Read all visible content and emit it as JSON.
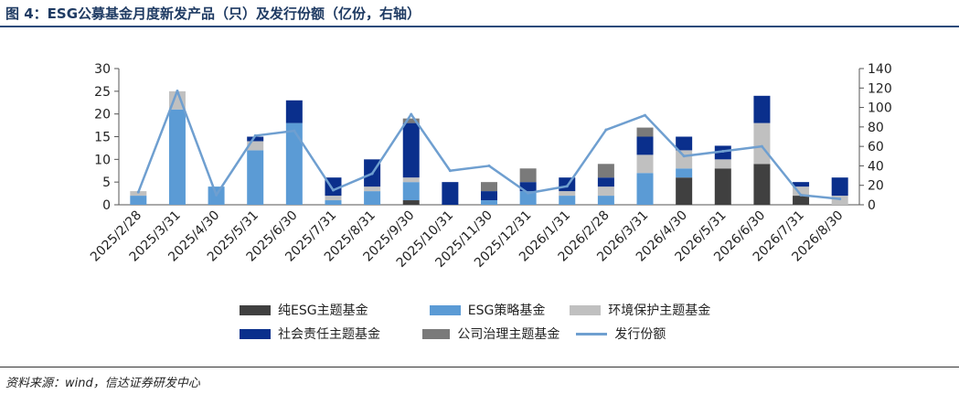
{
  "title": "图 4：ESG公募基金月度新发产品（只）及发行份额（亿份，右轴）",
  "source": "资料来源：wind，信达证券研发中心",
  "chart_data": {
    "type": "bar",
    "stacked": true,
    "categories": [
      "2025/2/28",
      "2025/3/31",
      "2025/4/30",
      "2025/5/31",
      "2025/6/30",
      "2025/7/31",
      "2025/8/31",
      "2025/9/30",
      "2025/10/31",
      "2025/11/30",
      "2025/12/31",
      "2026/1/31",
      "2026/2/28",
      "2026/3/31",
      "2026/4/30",
      "2026/5/31",
      "2026/6/30",
      "2026/7/31",
      "2026/8/30"
    ],
    "series": [
      {
        "name": "纯ESG主题基金",
        "color": "#404040",
        "values": [
          0,
          0,
          0,
          0,
          0,
          0,
          0,
          1,
          0,
          0,
          0,
          0,
          0,
          0,
          6,
          8,
          9,
          2,
          0
        ]
      },
      {
        "name": "ESG策略基金",
        "color": "#5b9bd5",
        "values": [
          2,
          21,
          4,
          12,
          18,
          1,
          3,
          4,
          0,
          1,
          3,
          2,
          2,
          7,
          2,
          0,
          0,
          0,
          0
        ]
      },
      {
        "name": "环境保护主题基金",
        "color": "#c0c0c0",
        "values": [
          1,
          4,
          0,
          2,
          0,
          1,
          1,
          1,
          0,
          0,
          0,
          1,
          2,
          4,
          4,
          2,
          9,
          2,
          2
        ]
      },
      {
        "name": "社会责任主题基金",
        "color": "#0a2f8c",
        "values": [
          0,
          0,
          0,
          1,
          5,
          4,
          6,
          12,
          5,
          2,
          2,
          3,
          2,
          4,
          3,
          3,
          6,
          1,
          4
        ]
      },
      {
        "name": "公司治理主题基金",
        "color": "#7a7a7a",
        "values": [
          0,
          0,
          0,
          0,
          0,
          0,
          0,
          1,
          0,
          2,
          3,
          0,
          3,
          2,
          0,
          0,
          0,
          0,
          0
        ]
      }
    ],
    "line": {
      "name": "发行份额",
      "color": "#6f9fd0",
      "axis": "right",
      "values": [
        13,
        117,
        10,
        71,
        76,
        15,
        32,
        93,
        35,
        40,
        12,
        19,
        77,
        92,
        50,
        55,
        60,
        10,
        6
      ]
    },
    "ylim_left": [
      0,
      30
    ],
    "ylim_right": [
      0,
      140
    ],
    "yticks_left": [
      0,
      5,
      10,
      15,
      20,
      25,
      30
    ],
    "yticks_right": [
      0,
      20,
      40,
      60,
      80,
      100,
      120,
      140
    ]
  }
}
